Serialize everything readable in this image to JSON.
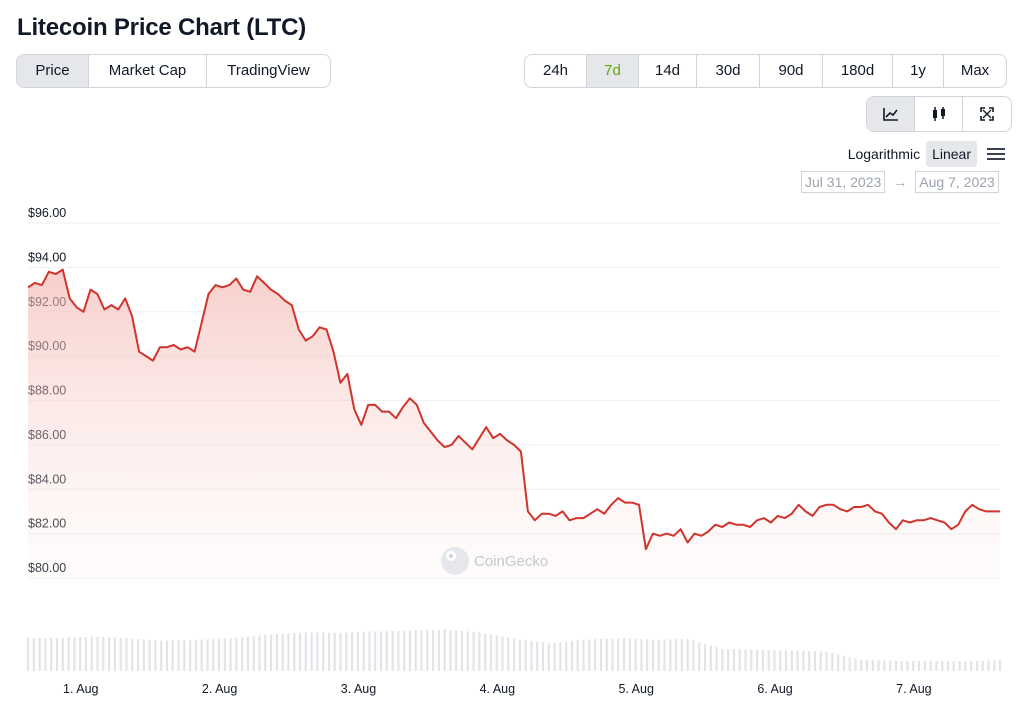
{
  "page": {
    "title": "Litecoin Price Chart (LTC)"
  },
  "tabs": [
    {
      "label": "Price",
      "active": true
    },
    {
      "label": "Market Cap",
      "active": false
    },
    {
      "label": "TradingView",
      "active": false
    }
  ],
  "ranges": [
    {
      "label": "24h",
      "active": false
    },
    {
      "label": "7d",
      "active": true
    },
    {
      "label": "14d",
      "active": false
    },
    {
      "label": "30d",
      "active": false
    },
    {
      "label": "90d",
      "active": false
    },
    {
      "label": "180d",
      "active": false
    },
    {
      "label": "1y",
      "active": false
    },
    {
      "label": "Max",
      "active": false
    }
  ],
  "chart_types": [
    {
      "icon": "line-chart-icon",
      "active": true
    },
    {
      "icon": "candlestick-icon",
      "active": false
    },
    {
      "icon": "fullscreen-icon",
      "active": false
    }
  ],
  "scale": {
    "log_label": "Logarithmic",
    "linear_label": "Linear",
    "selected": "Linear",
    "menu_icon": "hamburger-menu-icon"
  },
  "date_range": {
    "from": "Jul 31, 2023",
    "arrow": "→",
    "to": "Aug 7, 2023"
  },
  "colors": {
    "line": "#d0342c",
    "area_fill": "#f8d7d4",
    "volume": "#e5e7eb",
    "active_range": "#65a30d"
  },
  "watermark": "CoinGecko",
  "chart_data": {
    "type": "area",
    "title": "",
    "ylim": [
      80,
      96
    ],
    "yticks": [
      {
        "value": 96,
        "label": "$96.00"
      },
      {
        "value": 94,
        "label": "$94.00"
      },
      {
        "value": 92,
        "label": "$92.00"
      },
      {
        "value": 90,
        "label": "$90.00"
      },
      {
        "value": 88,
        "label": "$88.00"
      },
      {
        "value": 86,
        "label": "$86.00"
      },
      {
        "value": 84,
        "label": "$84.00"
      },
      {
        "value": 82,
        "label": "$82.00"
      },
      {
        "value": 80,
        "label": "$80.00"
      }
    ],
    "xlim": [
      0,
      7
    ],
    "xticks": [
      {
        "value": 0.38,
        "label": "1. Aug"
      },
      {
        "value": 1.38,
        "label": "2. Aug"
      },
      {
        "value": 2.38,
        "label": "3. Aug"
      },
      {
        "value": 3.38,
        "label": "4. Aug"
      },
      {
        "value": 4.38,
        "label": "5. Aug"
      },
      {
        "value": 5.38,
        "label": "6. Aug"
      },
      {
        "value": 6.38,
        "label": "7. Aug"
      }
    ],
    "grid": true,
    "legend": "none",
    "x_unit": "days since Jul 31, 2023 14:00",
    "price": {
      "x": [
        0,
        0.05,
        0.1,
        0.15,
        0.2,
        0.25,
        0.3,
        0.35,
        0.4,
        0.45,
        0.5,
        0.55,
        0.6,
        0.65,
        0.7,
        0.75,
        0.8,
        0.85,
        0.9,
        0.95,
        1.0,
        1.05,
        1.1,
        1.15,
        1.2,
        1.25,
        1.3,
        1.35,
        1.4,
        1.45,
        1.5,
        1.55,
        1.6,
        1.65,
        1.7,
        1.75,
        1.8,
        1.85,
        1.9,
        1.95,
        2.0,
        2.05,
        2.1,
        2.15,
        2.2,
        2.25,
        2.3,
        2.35,
        2.4,
        2.45,
        2.5,
        2.55,
        2.6,
        2.65,
        2.7,
        2.75,
        2.8,
        2.85,
        2.9,
        2.95,
        3.0,
        3.05,
        3.1,
        3.15,
        3.2,
        3.25,
        3.3,
        3.35,
        3.4,
        3.45,
        3.5,
        3.55,
        3.6,
        3.65,
        3.7,
        3.75,
        3.8,
        3.85,
        3.9,
        3.95,
        4.0,
        4.05,
        4.1,
        4.15,
        4.2,
        4.25,
        4.3,
        4.35,
        4.4,
        4.45,
        4.5,
        4.55,
        4.6,
        4.65,
        4.7,
        4.75,
        4.8,
        4.85,
        4.9,
        4.95,
        5.0,
        5.05,
        5.1,
        5.15,
        5.2,
        5.25,
        5.3,
        5.35,
        5.4,
        5.45,
        5.5,
        5.55,
        5.6,
        5.65,
        5.7,
        5.75,
        5.8,
        5.85,
        5.9,
        5.95,
        6.0,
        6.05,
        6.1,
        6.15,
        6.2,
        6.25,
        6.3,
        6.35,
        6.4,
        6.45,
        6.5,
        6.55,
        6.6,
        6.65,
        6.7,
        6.75,
        6.8,
        6.85,
        6.9,
        6.95,
        7.0
      ],
      "y": [
        93.1,
        93.3,
        93.2,
        93.8,
        93.7,
        93.9,
        92.6,
        92.2,
        92.0,
        93.0,
        92.8,
        92.1,
        92.3,
        92.1,
        92.6,
        91.8,
        90.2,
        90.0,
        89.8,
        90.4,
        90.4,
        90.5,
        90.3,
        90.4,
        90.2,
        91.5,
        92.8,
        93.2,
        93.1,
        93.2,
        93.5,
        93.0,
        92.9,
        93.6,
        93.3,
        93.0,
        92.8,
        92.5,
        92.3,
        91.2,
        90.7,
        90.9,
        91.3,
        91.2,
        90.2,
        88.8,
        89.2,
        87.6,
        86.9,
        87.8,
        87.8,
        87.5,
        87.5,
        87.2,
        87.7,
        88.1,
        87.8,
        87.0,
        86.6,
        86.2,
        85.9,
        86.0,
        86.4,
        86.1,
        85.8,
        86.3,
        86.8,
        86.3,
        86.5,
        86.2,
        86.0,
        85.7,
        83.0,
        82.6,
        82.9,
        82.9,
        82.8,
        83.0,
        82.6,
        82.7,
        82.7,
        82.9,
        83.1,
        82.9,
        83.3,
        83.6,
        83.4,
        83.4,
        83.3,
        81.3,
        82.0,
        81.9,
        82.0,
        81.9,
        82.2,
        81.6,
        82.0,
        81.9,
        82.1,
        82.4,
        82.3,
        82.5,
        82.4,
        82.4,
        82.3,
        82.6,
        82.7,
        82.5,
        82.8,
        82.7,
        82.9,
        83.3,
        83.0,
        82.8,
        83.2,
        83.3,
        83.3,
        83.1,
        83.0,
        83.2,
        83.2,
        83.3,
        83.0,
        82.9,
        82.5,
        82.2,
        82.6,
        82.5,
        82.6,
        82.6,
        82.7,
        82.6,
        82.5,
        82.2,
        82.4,
        83.0,
        83.3,
        83.1,
        83.0,
        83.0,
        83.0
      ]
    },
    "volume": {
      "note": "relative volume bars (no axis shown)",
      "x": [
        0,
        0.25,
        0.5,
        0.75,
        1.0,
        1.25,
        1.5,
        1.75,
        2.0,
        2.25,
        2.5,
        2.75,
        3.0,
        3.25,
        3.5,
        3.75,
        4.0,
        4.25,
        4.5,
        4.75,
        5.0,
        5.25,
        5.5,
        5.75,
        6.0,
        6.25,
        6.5,
        6.75,
        7.0
      ],
      "values": [
        0.72,
        0.72,
        0.75,
        0.7,
        0.66,
        0.68,
        0.72,
        0.8,
        0.84,
        0.83,
        0.86,
        0.88,
        0.9,
        0.84,
        0.7,
        0.6,
        0.68,
        0.72,
        0.68,
        0.7,
        0.48,
        0.46,
        0.45,
        0.42,
        0.24,
        0.22,
        0.22,
        0.21,
        0.24
      ]
    }
  }
}
